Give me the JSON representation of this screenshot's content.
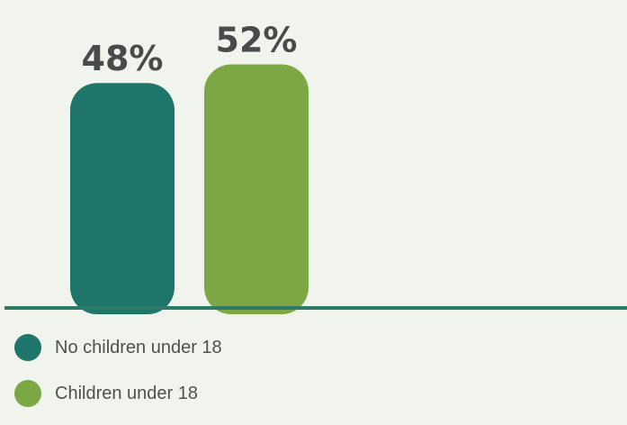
{
  "chart_data": {
    "type": "bar",
    "categories": [
      "No children under 18",
      "Children under 18"
    ],
    "values": [
      48,
      52
    ],
    "value_labels": [
      "48%",
      "52%"
    ],
    "ylim": [
      0,
      60
    ],
    "colors": [
      "#1e7569",
      "#7ba744"
    ],
    "axis_color": "#2d7a66",
    "label_color": "#4a4a4a",
    "grid": false,
    "legend_position": "bottom-left"
  },
  "legend": {
    "items": [
      {
        "label": "No children under 18",
        "color": "#1e7569"
      },
      {
        "label": "Children under 18",
        "color": "#7ba744"
      }
    ]
  }
}
